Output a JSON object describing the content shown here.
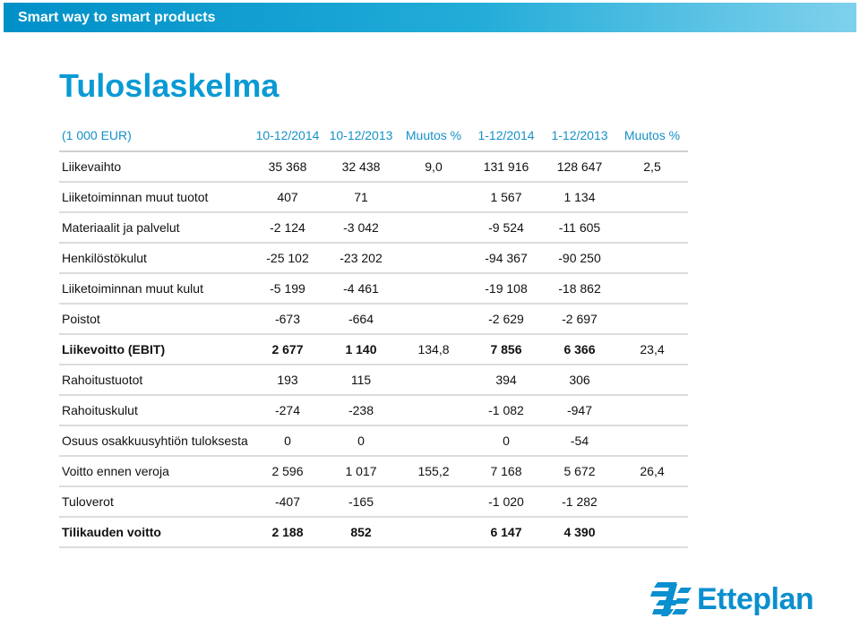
{
  "banner": {
    "text": "Smart way to smart products"
  },
  "title": "Tuloslaskelma",
  "table": {
    "headers": [
      "(1 000 EUR)",
      "10-12/2014",
      "10-12/2013",
      "Muutos %",
      "1-12/2014",
      "1-12/2013",
      "Muutos %"
    ],
    "rows": [
      {
        "label": "Liikevaihto",
        "values": [
          "35 368",
          "32 438",
          "9,0",
          "131 916",
          "128 647",
          "2,5"
        ],
        "bold": false
      },
      {
        "label": "Liiketoiminnan muut tuotot",
        "values": [
          "407",
          "71",
          "",
          "1 567",
          "1 134",
          ""
        ],
        "bold": false
      },
      {
        "label": "Materiaalit ja palvelut",
        "values": [
          "-2 124",
          "-3 042",
          "",
          "-9 524",
          "-11 605",
          ""
        ],
        "bold": false
      },
      {
        "label": "Henkilöstökulut",
        "values": [
          "-25 102",
          "-23 202",
          "",
          "-94 367",
          "-90 250",
          ""
        ],
        "bold": false
      },
      {
        "label": "Liiketoiminnan muut kulut",
        "values": [
          "-5 199",
          "-4 461",
          "",
          "-19 108",
          "-18 862",
          ""
        ],
        "bold": false
      },
      {
        "label": "Poistot",
        "values": [
          "-673",
          "-664",
          "",
          "-2 629",
          "-2 697",
          ""
        ],
        "bold": false
      },
      {
        "label": "Liikevoitto (EBIT)",
        "values": [
          "2 677",
          "1 140",
          "134,8",
          "7 856",
          "6 366",
          "23,4"
        ],
        "bold": true,
        "plain_cols": [
          2,
          5
        ]
      },
      {
        "label": "Rahoitustuotot",
        "values": [
          "193",
          "115",
          "",
          "394",
          "306",
          ""
        ],
        "bold": false
      },
      {
        "label": "Rahoituskulut",
        "values": [
          "-274",
          "-238",
          "",
          "-1 082",
          "-947",
          ""
        ],
        "bold": false
      },
      {
        "label": "Osuus osakkuusyhtiön tuloksesta",
        "values": [
          "0",
          "0",
          "",
          "0",
          "-54",
          ""
        ],
        "bold": false
      },
      {
        "label": "Voitto ennen veroja",
        "values": [
          "2 596",
          "1 017",
          "155,2",
          "7 168",
          "5 672",
          "26,4"
        ],
        "bold": false
      },
      {
        "label": "Tuloverot",
        "values": [
          "-407",
          "-165",
          "",
          "-1 020",
          "-1 282",
          ""
        ],
        "bold": false
      },
      {
        "label": "Tilikauden voitto",
        "values": [
          "2 188",
          "852",
          "",
          "6 147",
          "4 390",
          ""
        ],
        "bold": true
      }
    ]
  },
  "logo": {
    "text": "Etteplan",
    "icon": "etteplan-logo-icon"
  },
  "colors": {
    "accent": "#0a9ad4",
    "header_text": "#1690c8",
    "banner_start": "#0090c8",
    "banner_end": "#7fd1ec",
    "row_divider": "#dcdcdc"
  }
}
